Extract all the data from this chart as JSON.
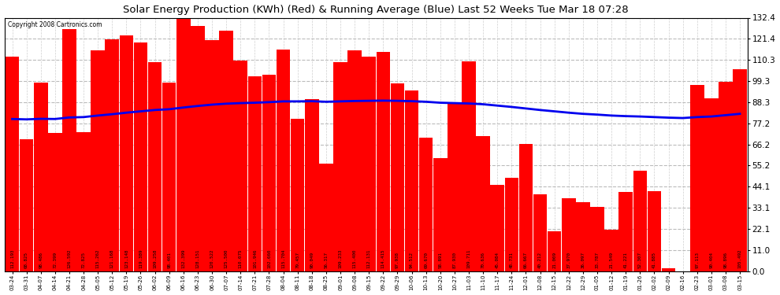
{
  "title": "Solar Energy Production (KWh) (Red) & Running Average (Blue) Last 52 Weeks Tue Mar 18 07:28",
  "copyright": "Copyright 2008 Cartronics.com",
  "bar_color": "#ff0000",
  "avg_color": "#0000ee",
  "background_color": "#ffffff",
  "plot_bg_color": "#ffffff",
  "grid_color": "#bbbbbb",
  "ylim": [
    0.0,
    132.4
  ],
  "yticks": [
    0.0,
    11.0,
    22.1,
    33.1,
    44.1,
    55.2,
    66.2,
    77.2,
    88.3,
    99.3,
    110.3,
    121.4,
    132.4
  ],
  "categories": [
    "03-24",
    "03-31",
    "04-07",
    "04-14",
    "04-21",
    "04-28",
    "05-05",
    "05-12",
    "05-19",
    "05-26",
    "06-02",
    "06-09",
    "06-16",
    "06-23",
    "06-30",
    "07-07",
    "07-14",
    "07-21",
    "07-28",
    "08-04",
    "08-11",
    "08-18",
    "08-25",
    "09-01",
    "09-08",
    "09-15",
    "09-22",
    "09-29",
    "10-06",
    "10-13",
    "10-20",
    "10-27",
    "11-03",
    "11-10",
    "11-17",
    "11-24",
    "12-01",
    "12-08",
    "12-15",
    "12-22",
    "12-29",
    "01-05",
    "01-12",
    "01-19",
    "01-26",
    "02-02",
    "02-09",
    "02-16",
    "02-23",
    "03-01",
    "03-08",
    "03-15"
  ],
  "values": [
    112.193,
    68.825,
    98.486,
    72.399,
    126.592,
    72.825,
    115.262,
    121.168,
    123.148,
    119.389,
    109.258,
    98.401,
    132.399,
    128.151,
    120.522,
    125.5,
    110.075,
    101.946,
    102.66,
    115.704,
    79.457,
    90.049,
    56.317,
    109.233,
    115.4,
    112.131,
    114.415,
    97.938,
    94.512,
    69.67,
    58.891,
    87.93,
    109.711,
    70.636,
    45.084,
    48.731,
    66.667,
    40.212,
    21.009,
    37.97,
    36.097,
    33.787,
    21.549,
    41.221,
    52.307,
    41.885,
    1.413,
    0.0,
    97.113,
    90.404,
    98.896,
    105.492
  ],
  "avg_values": [
    79.5,
    79.3,
    79.6,
    79.5,
    80.3,
    80.5,
    81.3,
    82.0,
    82.8,
    83.5,
    84.2,
    84.6,
    85.5,
    86.3,
    87.0,
    87.5,
    87.8,
    88.0,
    88.3,
    88.7,
    88.7,
    88.8,
    88.5,
    88.7,
    88.9,
    89.0,
    89.1,
    89.0,
    88.8,
    88.5,
    88.0,
    87.8,
    87.6,
    87.2,
    86.5,
    85.8,
    85.0,
    84.2,
    83.5,
    82.8,
    82.2,
    81.8,
    81.3,
    81.0,
    80.8,
    80.5,
    80.2,
    80.0,
    80.5,
    80.8,
    81.5,
    82.2
  ]
}
